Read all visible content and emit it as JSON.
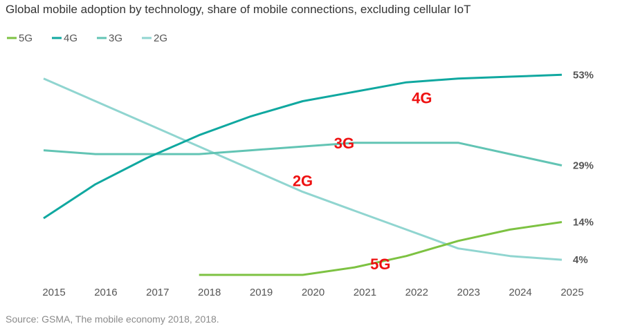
{
  "chart_data": {
    "type": "line",
    "title": "Global mobile adoption by technology, share of mobile connections, excluding cellular IoT",
    "source": "Source: GSMA, The mobile economy 2018, 2018.",
    "x": [
      "2015",
      "2016",
      "2017",
      "2018",
      "2019",
      "2020",
      "2021",
      "2022",
      "2023",
      "2024",
      "2025"
    ],
    "ylim": [
      0,
      60
    ],
    "grid": false,
    "legend_position": "top-left",
    "series": [
      {
        "name": "5G",
        "color": "#7dc242",
        "values": [
          null,
          null,
          null,
          0,
          0,
          0,
          2,
          5,
          9,
          12,
          14
        ],
        "end_label": "14%",
        "inline_label": "5G"
      },
      {
        "name": "4G",
        "color": "#10a8a0",
        "values": [
          15,
          24,
          31,
          37,
          42,
          46,
          48.5,
          51,
          52,
          52.5,
          53
        ],
        "end_label": "53%",
        "inline_label": "4G"
      },
      {
        "name": "3G",
        "color": "#62c4b4",
        "values": [
          33,
          32,
          32,
          32,
          33,
          34,
          35,
          35,
          35,
          32,
          29
        ],
        "end_label": "29%",
        "inline_label": "3G"
      },
      {
        "name": "2G",
        "color": "#90d5d0",
        "values": [
          52,
          46,
          40,
          34,
          28,
          22,
          17,
          12,
          7,
          5,
          4
        ],
        "end_label": "4%",
        "inline_label": "2G"
      }
    ]
  }
}
